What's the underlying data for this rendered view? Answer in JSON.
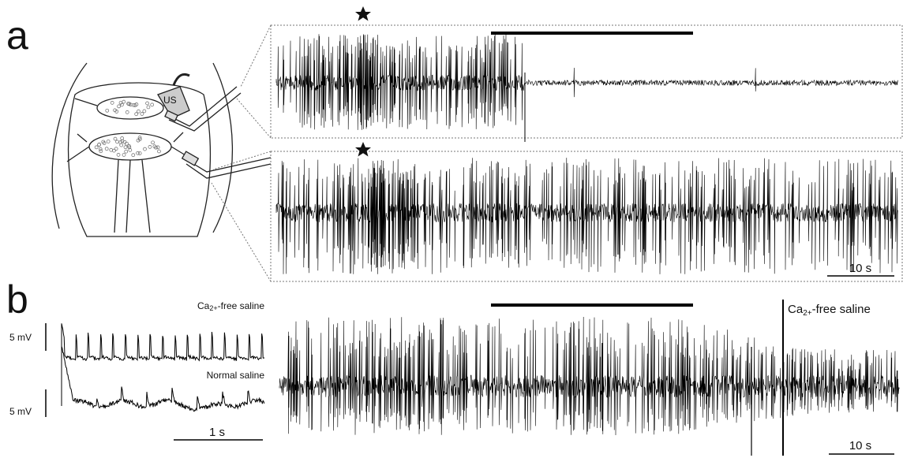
{
  "panels": {
    "a": {
      "label": "a",
      "probe_label": "US",
      "scale_label": "10 s"
    },
    "b": {
      "label": "b",
      "inset_top_label": {
        "base": "Ca",
        "sup": "2+",
        "rest": "-free saline"
      },
      "inset_bottom_label": "Normal saline",
      "inset_top_scale": "5 mV",
      "inset_bottom_scale": "5 mV",
      "inset_time_scale": "1 s",
      "trace_label": {
        "base": "Ca",
        "sup": "2+",
        "rest": "-free saline"
      },
      "scale_label": "10 s"
    }
  }
}
